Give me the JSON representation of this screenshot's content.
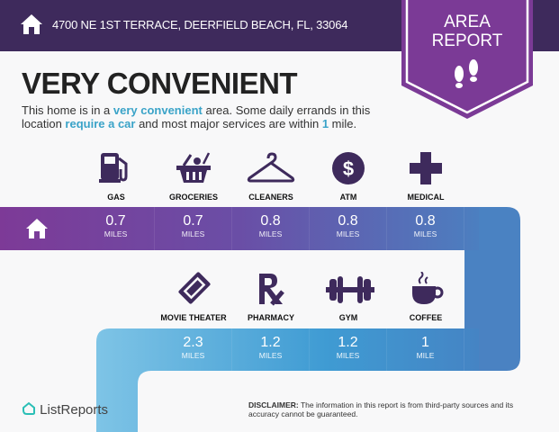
{
  "header": {
    "address": "4700 NE 1ST TERRACE, DEERFIELD BEACH, FL, 33064",
    "home_icon": "house-icon"
  },
  "badge": {
    "line1": "AREA",
    "line2": "REPORT",
    "icon": "footprints-icon"
  },
  "summary": {
    "title": "VERY CONVENIENT",
    "t1": "This home is in a ",
    "h1": "very convenient",
    "t2": " area. Some daily errands in this location ",
    "h2": "require a car",
    "t3": " and most major services are within ",
    "h3": "1",
    "t4": " mile."
  },
  "row1": [
    {
      "label": "GAS",
      "value": "0.7",
      "unit": "MILES",
      "icon": "gas-pump-icon"
    },
    {
      "label": "GROCERIES",
      "value": "0.7",
      "unit": "MILES",
      "icon": "grocery-basket-icon"
    },
    {
      "label": "CLEANERS",
      "value": "0.8",
      "unit": "MILES",
      "icon": "hanger-icon"
    },
    {
      "label": "ATM",
      "value": "0.8",
      "unit": "MILES",
      "icon": "dollar-icon"
    },
    {
      "label": "MEDICAL",
      "value": "0.8",
      "unit": "MILES",
      "icon": "medical-cross-icon"
    }
  ],
  "row2": [
    {
      "label": "MOVIE THEATER",
      "value": "2.3",
      "unit": "MILES",
      "icon": "ticket-icon"
    },
    {
      "label": "PHARMACY",
      "value": "1.2",
      "unit": "MILES",
      "icon": "rx-icon"
    },
    {
      "label": "GYM",
      "value": "1.2",
      "unit": "MILES",
      "icon": "dumbbell-icon"
    },
    {
      "label": "COFFEE",
      "value": "1",
      "unit": "MILE",
      "icon": "coffee-cup-icon"
    }
  ],
  "footer": {
    "logo": "ListReports",
    "disclaimer_label": "DISCLAIMER:",
    "disclaimer": " The information in this report is from third-party sources and its accuracy cannot be guaranteed."
  },
  "colors": {
    "header": "#3e2a5c",
    "badge": "#7b3a96",
    "icon": "#3e2a5c",
    "highlight": "#3aa3c8"
  }
}
